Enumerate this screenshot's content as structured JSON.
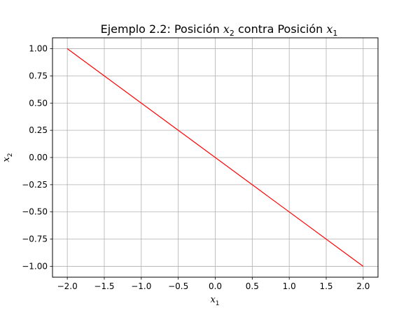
{
  "chart_data": {
    "type": "line",
    "title": {
      "prefix": "Ejemplo 2.2: Posición ",
      "var_a": "x",
      "var_a_sub": "2",
      "middle": " contra Posición ",
      "var_b": "x",
      "var_b_sub": "1"
    },
    "xlabel": {
      "var": "x",
      "sub": "1"
    },
    "ylabel": {
      "var": "x",
      "sub": "2"
    },
    "xlim": [
      -2.2,
      2.2
    ],
    "ylim": [
      -1.1,
      1.1
    ],
    "xticks": [
      -2.0,
      -1.5,
      -1.0,
      -0.5,
      0.0,
      0.5,
      1.0,
      1.5,
      2.0
    ],
    "yticks": [
      -1.0,
      -0.75,
      -0.5,
      -0.25,
      0.0,
      0.25,
      0.5,
      0.75,
      1.0
    ],
    "xtick_labels": [
      "−2.0",
      "−1.5",
      "−1.0",
      "−0.5",
      "0.0",
      "0.5",
      "1.0",
      "1.5",
      "2.0"
    ],
    "ytick_labels": [
      "−1.00",
      "−0.75",
      "−0.50",
      "−0.25",
      "0.00",
      "0.25",
      "0.50",
      "0.75",
      "1.00"
    ],
    "grid": true,
    "series": [
      {
        "color": "#ff0000",
        "x": [
          -2.0,
          2.0
        ],
        "y": [
          1.0,
          -1.0
        ]
      }
    ]
  }
}
